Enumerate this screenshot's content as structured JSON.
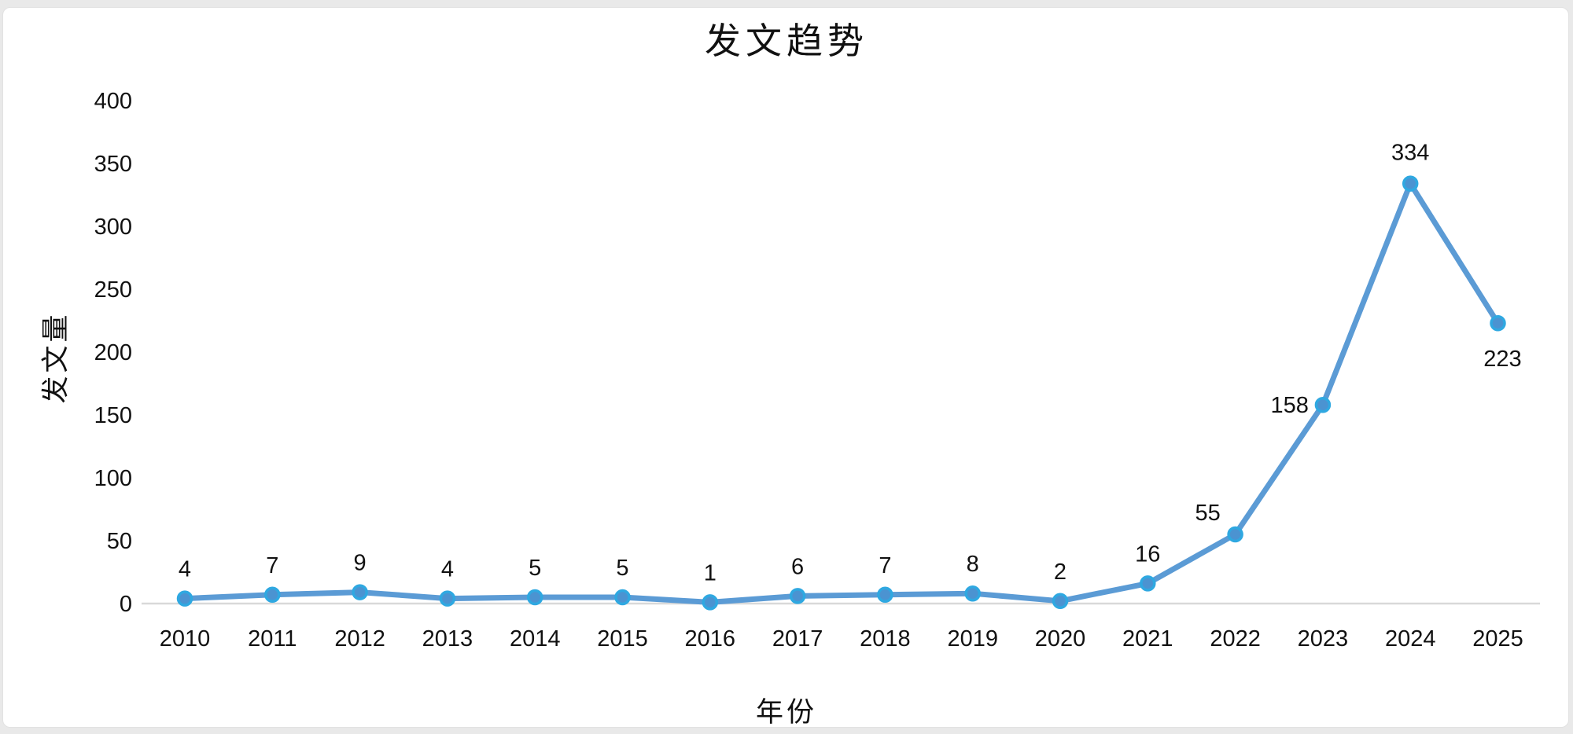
{
  "page": {
    "background_color": "#e9e9e9",
    "card_background_color": "#ffffff"
  },
  "chart_data": {
    "type": "line",
    "title": "发文趋势",
    "xlabel": "年份",
    "ylabel": "发文量",
    "categories": [
      "2010",
      "2011",
      "2012",
      "2013",
      "2014",
      "2015",
      "2016",
      "2017",
      "2018",
      "2019",
      "2020",
      "2021",
      "2022",
      "2023",
      "2024",
      "2025"
    ],
    "values": [
      4,
      7,
      9,
      4,
      5,
      5,
      1,
      6,
      7,
      8,
      2,
      16,
      55,
      158,
      334,
      223
    ],
    "ylim": [
      0,
      400
    ],
    "ytick_step": 50,
    "yticks": [
      0,
      50,
      100,
      150,
      200,
      250,
      300,
      350,
      400
    ],
    "grid": "off",
    "legend": "none",
    "data_labels_visible": true,
    "colors": {
      "line": "#5B9BD5",
      "marker_fill": "#4B93D1",
      "marker_stroke": "#2FA8E1",
      "axis_line": "#D9D9D9",
      "text": "#111111"
    }
  }
}
